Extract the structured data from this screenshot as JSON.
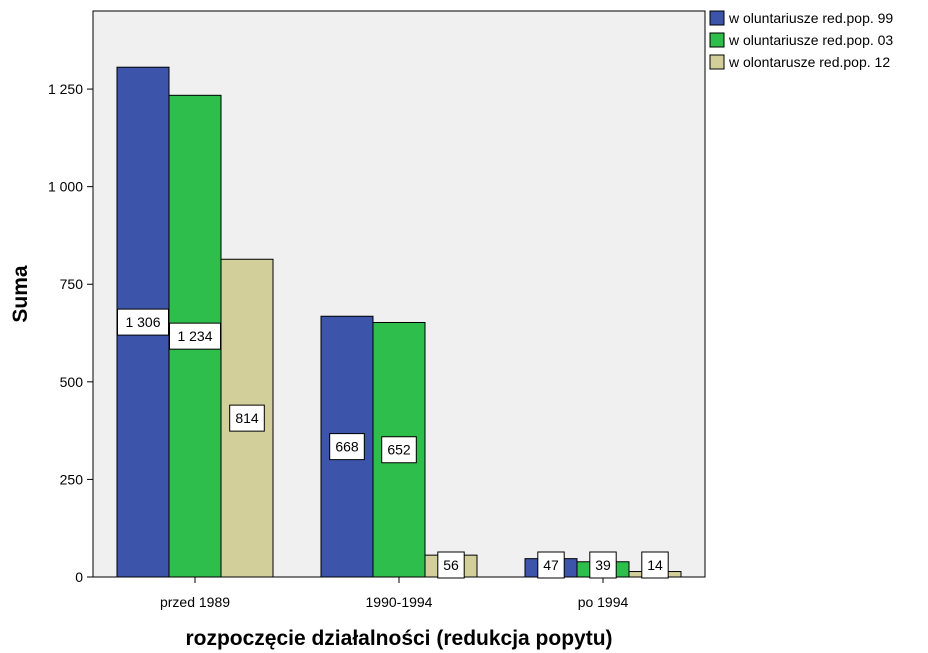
{
  "chart_data": {
    "type": "bar",
    "categories": [
      "przed 1989",
      "1990-1994",
      "po 1994"
    ],
    "series": [
      {
        "name": "w oluntariusze red.pop. 99",
        "color": "#3c55ab",
        "values": [
          1306,
          668,
          47
        ]
      },
      {
        "name": "w oluntariusze red.pop. 03",
        "color": "#2ebe4b",
        "values": [
          1234,
          652,
          39
        ]
      },
      {
        "name": "w olontarusze red.pop. 12",
        "color": "#d3cf9b",
        "values": [
          814,
          56,
          14
        ]
      }
    ],
    "data_labels": [
      [
        "1 306",
        "668",
        "47"
      ],
      [
        "1 234",
        "652",
        "39"
      ],
      [
        "814",
        "",
        ""
      ]
    ],
    "extra_labels": [
      {
        "category": 1,
        "series": 2,
        "text": "56"
      },
      {
        "category": 2,
        "series": 2,
        "text": "14"
      }
    ],
    "title": "",
    "xlabel": "rozpoczęcie działalności (redukcja popytu)",
    "ylabel": "Suma",
    "ylim": [
      0,
      1450
    ],
    "yticks": [
      0,
      250,
      500,
      750,
      1000,
      1250
    ],
    "ytick_labels": [
      "0",
      "250",
      "500",
      "750",
      "1 000",
      "1 250"
    ],
    "plot_background": "#f0f0f0",
    "legend": "top-right",
    "grid": false
  }
}
